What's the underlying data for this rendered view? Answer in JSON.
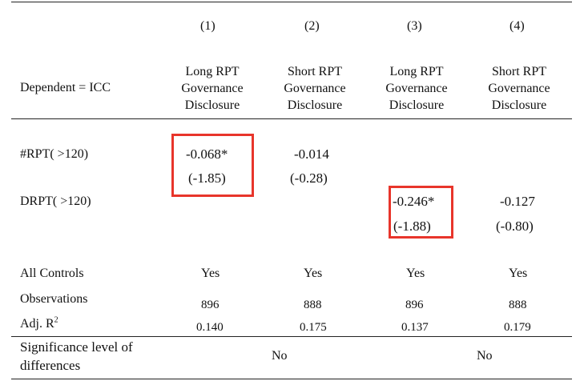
{
  "columns": [
    {
      "num": "(1)",
      "line1": "Long RPT",
      "line2": "Governance",
      "line3": "Disclosure"
    },
    {
      "num": "(2)",
      "line1": "Short RPT",
      "line2": "Governance",
      "line3": "Disclosure"
    },
    {
      "num": "(3)",
      "line1": "Long RPT",
      "line2": "Governance",
      "line3": "Disclosure"
    },
    {
      "num": "(4)",
      "line1": "Short RPT",
      "line2": "Governance",
      "line3": "Disclosure"
    }
  ],
  "dependent_label": "Dependent = ICC",
  "rows": {
    "rpt": {
      "label": "#RPT( >120)",
      "coef": [
        "-0.068*",
        "-0.014"
      ],
      "tstat": [
        "(-1.85)",
        "(-0.28)"
      ]
    },
    "drpt": {
      "label": "DRPT( >120)",
      "coef": [
        "-0.246*",
        "-0.127"
      ],
      "tstat": [
        "(-1.88)",
        "(-0.80)"
      ]
    },
    "controls": {
      "label": "All Controls",
      "values": [
        "Yes",
        "Yes",
        "Yes",
        "Yes"
      ]
    },
    "observations": {
      "label": "Observations",
      "values": [
        "896",
        "888",
        "896",
        "888"
      ]
    },
    "adjr2": {
      "label": "Adj. R",
      "sup": "2",
      "values": [
        "0.140",
        "0.175",
        "0.137",
        "0.179"
      ]
    },
    "significance": {
      "label_line1": "Significance level of",
      "label_line2": "differences",
      "values": [
        "No",
        "No"
      ]
    }
  },
  "highlight_color": "#e8352b"
}
